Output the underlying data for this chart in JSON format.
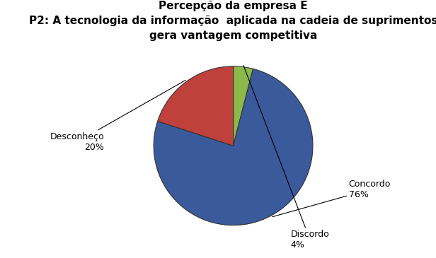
{
  "title_line1": "Percepção da empresa E",
  "title_line2": "P2: A tecnologia da informação  aplicada na cadeia de suprimentos\ngera vantagem competitiva",
  "slices": [
    4,
    76,
    20
  ],
  "label_names": [
    "Discordo",
    "Concordo",
    "Desconheço"
  ],
  "percentages": [
    "4%",
    "76%",
    "20%"
  ],
  "colors": [
    "#8db84a",
    "#3a5a9b",
    "#c0413c"
  ],
  "startangle": 90,
  "background_color": "#ffffff",
  "title_fontsize": 11,
  "label_fontsize": 9
}
